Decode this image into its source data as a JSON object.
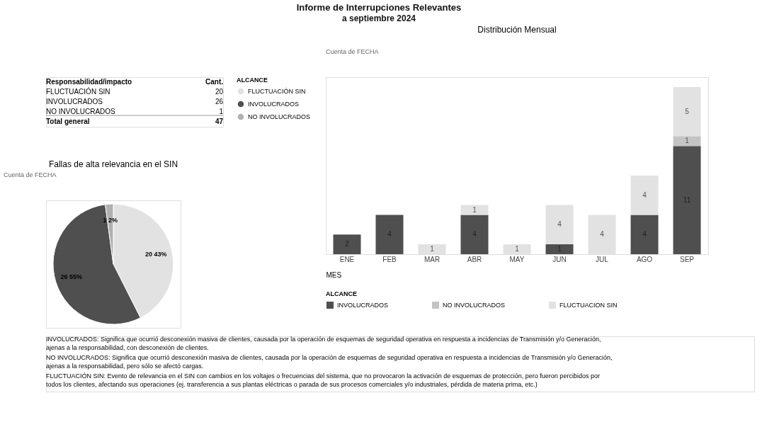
{
  "chart_data": [
    {
      "type": "other",
      "title": "Informe de Interrupciones Relevantes",
      "subtitle": "a septiembre 2024",
      "xlabel": "Responsabilidad/impacto",
      "ylabel": "Cant.",
      "data_labels": true,
      "categories": [
        "FLUCTUACIÓN SIN",
        "INVOLUCRADOS",
        "NO INVOLUCRADOS",
        "Total general"
      ],
      "values": [
        20,
        26,
        1,
        47
      ]
    },
    {
      "type": "pie",
      "title": "Fallas de alta relevancia en el SIN",
      "annotations": [
        "Cuenta de FECHA"
      ],
      "legend": "right",
      "legend_title": "ALCANCE",
      "categories": [
        "FLUCTUACIÓN SIN",
        "INVOLUCRADOS",
        "NO INVOLUCRADOS"
      ],
      "values": [
        20,
        26,
        1
      ],
      "colors": [
        "#e2e2e2",
        "#4f4f4f",
        "#b0b0b0"
      ],
      "value_labels": [
        "20 43%",
        "26 55%",
        "1 2%"
      ]
    },
    {
      "type": "bar",
      "title": "Distribución Mensual",
      "annotations": [
        "Cuenta de FECHA"
      ],
      "xlabel": "MES",
      "legend": "bottom",
      "legend_title": "ALCANCE",
      "stacked": true,
      "data_labels": true,
      "tick_labels": "x",
      "categories": [
        "ENE",
        "FEB",
        "MAR",
        "ABR",
        "MAY",
        "JUN",
        "JUL",
        "AGO",
        "SEP"
      ],
      "series": [
        {
          "name": "INVOLUCRADOS",
          "color": "#4f4f4f",
          "values": [
            2,
            4,
            null,
            4,
            null,
            1,
            null,
            4,
            11
          ]
        },
        {
          "name": "NO INVOLUCRADOS",
          "color": "#c4c4c4",
          "values": [
            null,
            null,
            null,
            null,
            null,
            null,
            null,
            null,
            1
          ]
        },
        {
          "name": "FLUCTUACION SIN",
          "color": "#e2e2e2",
          "values": [
            null,
            null,
            1,
            1,
            1,
            4,
            4,
            4,
            5
          ]
        }
      ]
    },
    {
      "type": "other",
      "annotations": [
        "INVOLUCRADOS: Significa que ocurrió desconexión masiva de clientes, causada por la operación de esquemas de seguridad operativa en respuesta a incidencias de Transmisión y/o Generación, ajenas a la responsabilidad, con desconexión de clientes.",
        "NO INVOLUCRADOS: Significa que ocurrió desconexión masiva de clientes, causada por la operación de esquemas de seguridad operativa en respuesta a incidencias de Transmisión y/o Generación, ajenas a la responsabilidad, pero sólo se afectó cargas.",
        "FLUCTUACIÓN SIN: Evento de relevancia en el SIN con cambios en los voltajes o frecuencias del sistema, que no provocaron la activación de esquemas de protección, pero fueron percibidos por todos los clientes, afectando sus operaciones (ej. transferencia a sus plantas eléctricas o parada de sus procesos comerciales y/o industriales, pérdida de materia prima, etc.)"
      ]
    }
  ]
}
